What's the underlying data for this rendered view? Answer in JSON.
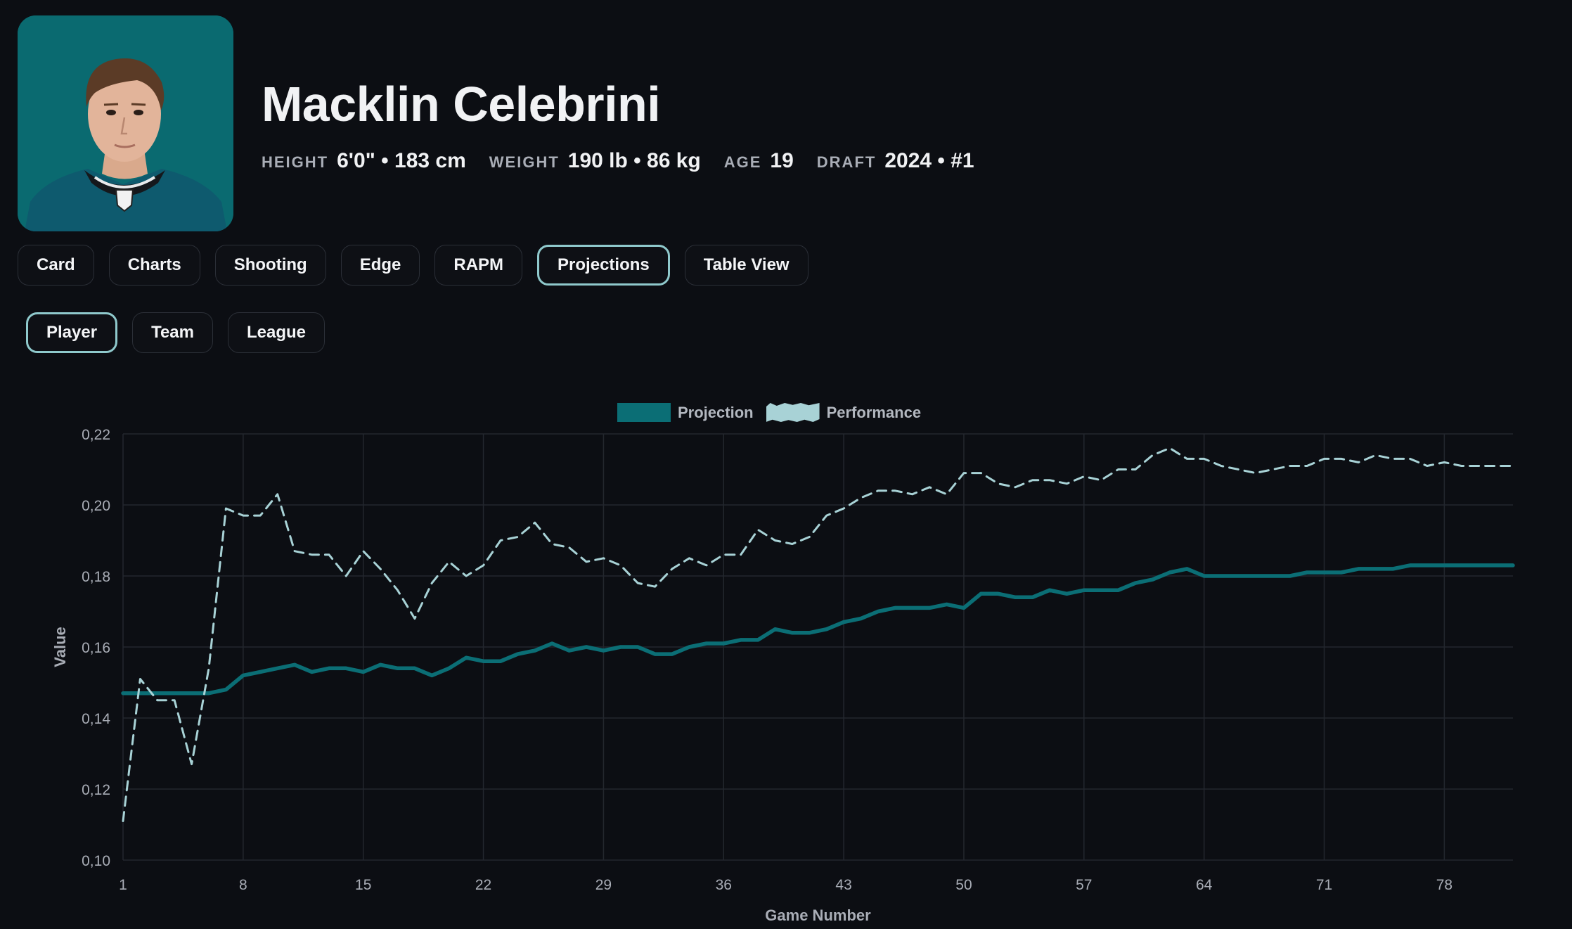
{
  "player": {
    "name": "Macklin Celebrini",
    "height_label": "HEIGHT",
    "height_value": "6'0\" • 183 cm",
    "weight_label": "WEIGHT",
    "weight_value": "190 lb • 86 kg",
    "age_label": "AGE",
    "age_value": "19",
    "draft_label": "DRAFT",
    "draft_value": "2024 • #1"
  },
  "tabs": [
    "Card",
    "Charts",
    "Shooting",
    "Edge",
    "RAPM",
    "Projections",
    "Table View"
  ],
  "active_tab": "Projections",
  "subtabs": [
    "Player",
    "Team",
    "League"
  ],
  "active_subtab": "Player",
  "colors": {
    "background": "#0c0e13",
    "projection": "#0b6e75",
    "performance": "#a8d2d6",
    "active_border": "#8fc9cc"
  },
  "chart_data": {
    "type": "line",
    "xlabel": "Game Number",
    "ylabel": "Value",
    "xlim": [
      1,
      82
    ],
    "ylim": [
      0.1,
      0.22
    ],
    "x_ticks": [
      "1",
      "8",
      "15",
      "22",
      "29",
      "36",
      "43",
      "50",
      "57",
      "64",
      "71",
      "78"
    ],
    "y_ticks": [
      "0,10",
      "0,12",
      "0,14",
      "0,16",
      "0,18",
      "0,20",
      "0,22"
    ],
    "legend_position": "top-center",
    "grid": true,
    "series": [
      {
        "name": "Projection",
        "style": "solid",
        "points": [
          [
            1,
            0.147
          ],
          [
            2,
            0.147
          ],
          [
            3,
            0.147
          ],
          [
            4,
            0.147
          ],
          [
            5,
            0.147
          ],
          [
            6,
            0.147
          ],
          [
            7,
            0.148
          ],
          [
            8,
            0.152
          ],
          [
            9,
            0.153
          ],
          [
            10,
            0.154
          ],
          [
            11,
            0.155
          ],
          [
            12,
            0.153
          ],
          [
            13,
            0.154
          ],
          [
            14,
            0.154
          ],
          [
            15,
            0.153
          ],
          [
            16,
            0.155
          ],
          [
            17,
            0.154
          ],
          [
            18,
            0.154
          ],
          [
            19,
            0.152
          ],
          [
            20,
            0.154
          ],
          [
            21,
            0.157
          ],
          [
            22,
            0.156
          ],
          [
            23,
            0.156
          ],
          [
            24,
            0.158
          ],
          [
            25,
            0.159
          ],
          [
            26,
            0.161
          ],
          [
            27,
            0.159
          ],
          [
            28,
            0.16
          ],
          [
            29,
            0.159
          ],
          [
            30,
            0.16
          ],
          [
            31,
            0.16
          ],
          [
            32,
            0.158
          ],
          [
            33,
            0.158
          ],
          [
            34,
            0.16
          ],
          [
            35,
            0.161
          ],
          [
            36,
            0.161
          ],
          [
            37,
            0.162
          ],
          [
            38,
            0.162
          ],
          [
            39,
            0.165
          ],
          [
            40,
            0.164
          ],
          [
            41,
            0.164
          ],
          [
            42,
            0.165
          ],
          [
            43,
            0.167
          ],
          [
            44,
            0.168
          ],
          [
            45,
            0.17
          ],
          [
            46,
            0.171
          ],
          [
            47,
            0.171
          ],
          [
            48,
            0.171
          ],
          [
            49,
            0.172
          ],
          [
            50,
            0.171
          ],
          [
            51,
            0.175
          ],
          [
            52,
            0.175
          ],
          [
            53,
            0.174
          ],
          [
            54,
            0.174
          ],
          [
            55,
            0.176
          ],
          [
            56,
            0.175
          ],
          [
            57,
            0.176
          ],
          [
            58,
            0.176
          ],
          [
            59,
            0.176
          ],
          [
            60,
            0.178
          ],
          [
            61,
            0.179
          ],
          [
            62,
            0.181
          ],
          [
            63,
            0.182
          ],
          [
            64,
            0.18
          ],
          [
            65,
            0.18
          ],
          [
            66,
            0.18
          ],
          [
            67,
            0.18
          ],
          [
            68,
            0.18
          ],
          [
            69,
            0.18
          ],
          [
            70,
            0.181
          ],
          [
            71,
            0.181
          ],
          [
            72,
            0.181
          ],
          [
            73,
            0.182
          ],
          [
            74,
            0.182
          ],
          [
            75,
            0.182
          ],
          [
            76,
            0.183
          ],
          [
            77,
            0.183
          ],
          [
            78,
            0.183
          ],
          [
            79,
            0.183
          ],
          [
            80,
            0.183
          ],
          [
            81,
            0.183
          ],
          [
            82,
            0.183
          ]
        ]
      },
      {
        "name": "Performance",
        "style": "dashed",
        "points": [
          [
            1,
            0.111
          ],
          [
            2,
            0.151
          ],
          [
            3,
            0.145
          ],
          [
            4,
            0.145
          ],
          [
            5,
            0.127
          ],
          [
            6,
            0.154
          ],
          [
            7,
            0.199
          ],
          [
            8,
            0.197
          ],
          [
            9,
            0.197
          ],
          [
            10,
            0.203
          ],
          [
            11,
            0.187
          ],
          [
            12,
            0.186
          ],
          [
            13,
            0.186
          ],
          [
            14,
            0.18
          ],
          [
            15,
            0.187
          ],
          [
            16,
            0.182
          ],
          [
            17,
            0.176
          ],
          [
            18,
            0.168
          ],
          [
            19,
            0.178
          ],
          [
            20,
            0.184
          ],
          [
            21,
            0.18
          ],
          [
            22,
            0.183
          ],
          [
            23,
            0.19
          ],
          [
            24,
            0.191
          ],
          [
            25,
            0.195
          ],
          [
            26,
            0.189
          ],
          [
            27,
            0.188
          ],
          [
            28,
            0.184
          ],
          [
            29,
            0.185
          ],
          [
            30,
            0.183
          ],
          [
            31,
            0.178
          ],
          [
            32,
            0.177
          ],
          [
            33,
            0.182
          ],
          [
            34,
            0.185
          ],
          [
            35,
            0.183
          ],
          [
            36,
            0.186
          ],
          [
            37,
            0.186
          ],
          [
            38,
            0.193
          ],
          [
            39,
            0.19
          ],
          [
            40,
            0.189
          ],
          [
            41,
            0.191
          ],
          [
            42,
            0.197
          ],
          [
            43,
            0.199
          ],
          [
            44,
            0.202
          ],
          [
            45,
            0.204
          ],
          [
            46,
            0.204
          ],
          [
            47,
            0.203
          ],
          [
            48,
            0.205
          ],
          [
            49,
            0.203
          ],
          [
            50,
            0.209
          ],
          [
            51,
            0.209
          ],
          [
            52,
            0.206
          ],
          [
            53,
            0.205
          ],
          [
            54,
            0.207
          ],
          [
            55,
            0.207
          ],
          [
            56,
            0.206
          ],
          [
            57,
            0.208
          ],
          [
            58,
            0.207
          ],
          [
            59,
            0.21
          ],
          [
            60,
            0.21
          ],
          [
            61,
            0.214
          ],
          [
            62,
            0.216
          ],
          [
            63,
            0.213
          ],
          [
            64,
            0.213
          ],
          [
            65,
            0.211
          ],
          [
            66,
            0.21
          ],
          [
            67,
            0.209
          ],
          [
            68,
            0.21
          ],
          [
            69,
            0.211
          ],
          [
            70,
            0.211
          ],
          [
            71,
            0.213
          ],
          [
            72,
            0.213
          ],
          [
            73,
            0.212
          ],
          [
            74,
            0.214
          ],
          [
            75,
            0.213
          ],
          [
            76,
            0.213
          ],
          [
            77,
            0.211
          ],
          [
            78,
            0.212
          ],
          [
            79,
            0.211
          ],
          [
            80,
            0.211
          ],
          [
            81,
            0.211
          ],
          [
            82,
            0.211
          ]
        ]
      }
    ]
  }
}
